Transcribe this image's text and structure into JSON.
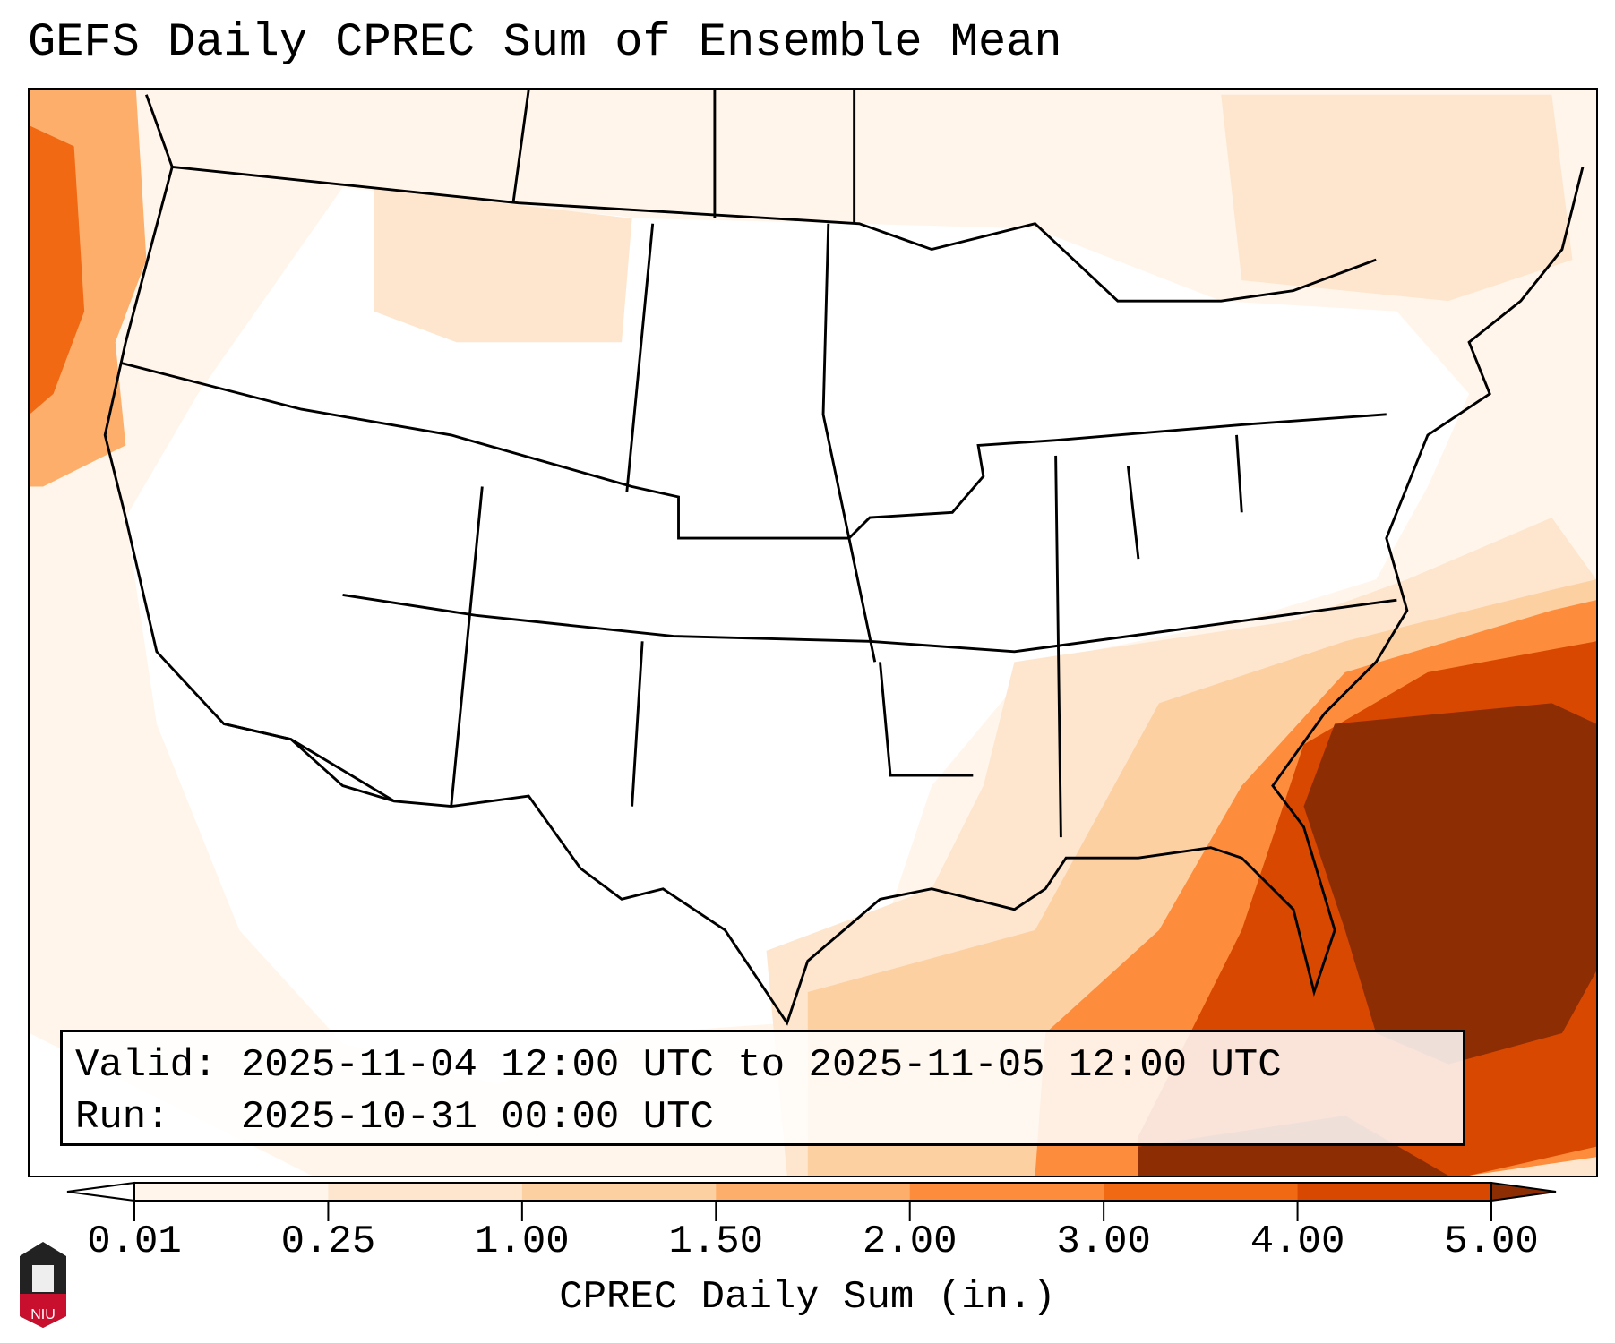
{
  "title": "GEFS Daily CPREC Sum of Ensemble Mean",
  "validity": {
    "valid_line": "Valid: 2025-11-04 12:00 UTC to 2025-11-05 12:00 UTC",
    "run_line": "Run:   2025-10-31 00:00 UTC"
  },
  "colorbar": {
    "label": "CPREC Daily Sum (in.)",
    "ticks": [
      "0.01",
      "0.25",
      "1.00",
      "1.50",
      "2.00",
      "3.00",
      "4.00",
      "5.00"
    ],
    "colors": [
      "#fff5eb",
      "#fee6ce",
      "#fdd0a2",
      "#fdae6b",
      "#fd8d3c",
      "#f16913",
      "#d94801",
      "#8c2d04"
    ],
    "under_color": "#ffffff",
    "over_color": "#8c2d04"
  },
  "logo": {
    "text": "NIU"
  }
}
